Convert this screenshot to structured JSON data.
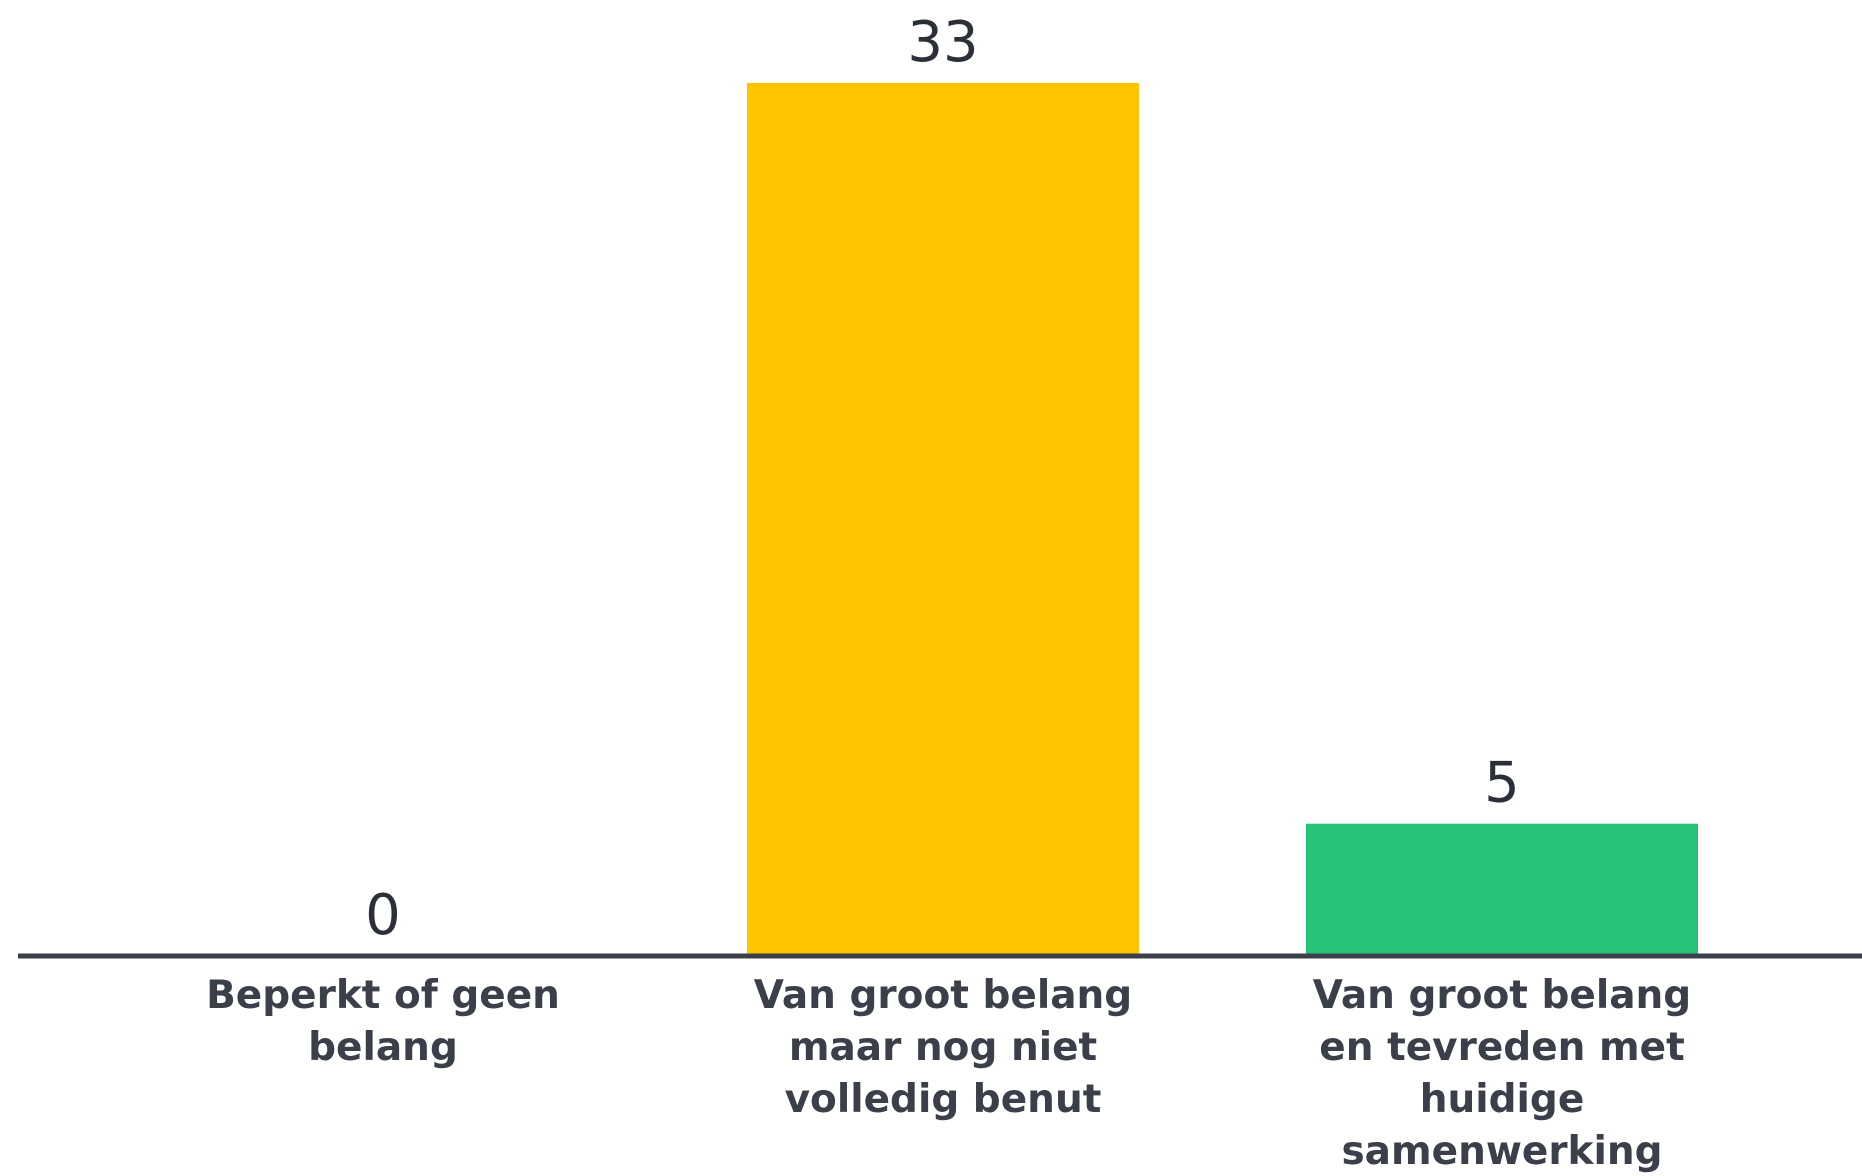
{
  "chart_data": {
    "type": "bar",
    "categories": [
      [
        "Beperkt of geen",
        "belang"
      ],
      [
        "Van groot belang",
        "maar nog niet",
        "volledig benut"
      ],
      [
        "Van groot belang",
        "en tevreden met",
        "huidige",
        "samenwerking"
      ]
    ],
    "values": [
      0,
      33,
      5
    ],
    "data_labels": [
      "0",
      "33",
      "5"
    ],
    "colors": [
      "#ffc400",
      "#ffc400",
      "#27c27a"
    ],
    "axis_color": "#3a3f4a",
    "ylim": [
      0,
      33
    ],
    "grid": false,
    "legend": "none"
  }
}
